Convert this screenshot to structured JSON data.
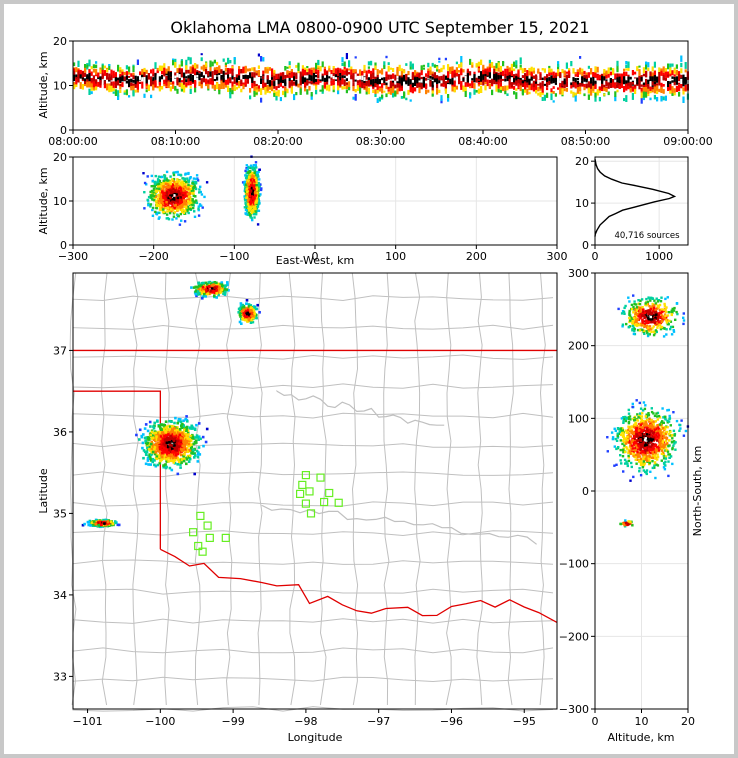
{
  "title": "Oklahoma LMA 0800-0900 UTC September 15, 2021",
  "source_count_label": "40,716 sources",
  "colors": {
    "background": "#c8c8c8",
    "frame": "#ffffff",
    "state_border": "#e00000",
    "county_lines": "#c0c0c0",
    "station": "#66ee22",
    "density": [
      "#0000cc",
      "#2040ff",
      "#00c0ff",
      "#00d0a0",
      "#20c020",
      "#ffe000",
      "#ff8000",
      "#ff0000",
      "#c00000",
      "#000000",
      "#ffffff"
    ]
  },
  "chart_data": [
    {
      "id": "time_height",
      "type": "heatmap",
      "title": "Oklahoma LMA 0800-0900 UTC September 15, 2021",
      "xlabel": "",
      "ylabel": "Altitude, km",
      "xlim": [
        "08:00:00",
        "09:00:00"
      ],
      "ylim": [
        0,
        20
      ],
      "xticks": [
        "08:00:00",
        "08:10:00",
        "08:20:00",
        "08:30:00",
        "08:40:00",
        "08:50:00",
        "09:00:00"
      ],
      "yticks": [
        "0",
        "10",
        "20"
      ],
      "x_minutes": [
        0,
        5,
        10,
        15,
        20,
        25,
        30,
        35,
        40,
        45,
        50,
        55,
        60
      ],
      "peak_altitude_km": [
        12,
        11,
        12,
        12,
        11,
        12,
        11,
        11,
        12,
        11,
        11,
        11,
        11
      ],
      "altitude_spread_km": [
        6,
        7,
        7,
        8,
        8,
        7,
        8,
        8,
        8,
        8,
        8,
        8,
        8
      ]
    },
    {
      "id": "ew_height",
      "type": "heatmap",
      "xlabel": "East-West, km",
      "ylabel": "Altitude, km",
      "xlim": [
        -300,
        300
      ],
      "ylim": [
        0,
        20
      ],
      "xticks": [
        "−300",
        "−200",
        "−100",
        "0",
        "100",
        "200",
        "300"
      ],
      "yticks": [
        "0",
        "10",
        "20"
      ],
      "clusters": [
        {
          "x_km": -175,
          "alt_km": 11,
          "x_spread_km": 25,
          "alt_spread_km": 7
        },
        {
          "x_km": -78,
          "alt_km": 12,
          "x_spread_km": 7,
          "alt_spread_km": 8
        }
      ]
    },
    {
      "id": "altitude_histogram",
      "type": "line",
      "xlabel": "",
      "ylabel": "",
      "xlim": [
        0,
        1450
      ],
      "ylim": [
        0,
        21
      ],
      "xticks": [
        "0",
        "1000"
      ],
      "yticks": [
        "0",
        "10",
        "20"
      ],
      "x": [
        0,
        5,
        30,
        80,
        150,
        220,
        320,
        430,
        560,
        730,
        930,
        1160,
        1240,
        1150,
        900,
        650,
        420,
        260,
        150,
        80,
        40,
        15,
        0
      ],
      "y": [
        2,
        2.6,
        3.5,
        4.8,
        5.8,
        6.8,
        7.5,
        8.3,
        8.8,
        9.5,
        10.3,
        11.1,
        11.6,
        12.3,
        13.3,
        14.1,
        14.8,
        15.7,
        16.5,
        17.4,
        18.2,
        19.2,
        20.5
      ]
    },
    {
      "id": "plan_view",
      "type": "heatmap",
      "xlabel": "Longitude",
      "ylabel": "Latitude",
      "xlim": [
        -101.2,
        -94.55
      ],
      "ylim": [
        32.6,
        37.95
      ],
      "xticks": [
        "−101",
        "−100",
        "−99",
        "−98",
        "−97",
        "−96",
        "−95"
      ],
      "yticks": [
        "33",
        "34",
        "35",
        "36",
        "37"
      ],
      "clusters": [
        {
          "lon": -99.85,
          "lat": 35.85,
          "d_lon": 0.3,
          "d_lat": 0.22
        },
        {
          "lon": -98.8,
          "lat": 37.45,
          "d_lon": 0.1,
          "d_lat": 0.09
        },
        {
          "lon": -99.3,
          "lat": 37.75,
          "d_lon": 0.18,
          "d_lat": 0.07
        },
        {
          "lon": -100.8,
          "lat": 34.88,
          "d_lon": 0.15,
          "d_lat": 0.03
        }
      ],
      "stations": [
        {
          "lon": -98.0,
          "lat": 35.47
        },
        {
          "lon": -97.8,
          "lat": 35.44
        },
        {
          "lon": -98.05,
          "lat": 35.35
        },
        {
          "lon": -97.95,
          "lat": 35.27
        },
        {
          "lon": -98.08,
          "lat": 35.24
        },
        {
          "lon": -97.68,
          "lat": 35.25
        },
        {
          "lon": -98.0,
          "lat": 35.12
        },
        {
          "lon": -97.75,
          "lat": 35.14
        },
        {
          "lon": -97.55,
          "lat": 35.13
        },
        {
          "lon": -97.93,
          "lat": 35.0
        },
        {
          "lon": -99.45,
          "lat": 34.97
        },
        {
          "lon": -99.35,
          "lat": 34.85
        },
        {
          "lon": -99.55,
          "lat": 34.77
        },
        {
          "lon": -99.32,
          "lat": 34.7
        },
        {
          "lon": -99.48,
          "lat": 34.6
        },
        {
          "lon": -99.42,
          "lat": 34.53
        },
        {
          "lon": -99.1,
          "lat": 34.7
        }
      ]
    },
    {
      "id": "ns_height",
      "type": "heatmap",
      "xlabel": "Altitude, km",
      "ylabel": "North-South, km",
      "xlim": [
        0,
        20
      ],
      "ylim": [
        -300,
        300
      ],
      "xticks": [
        "0",
        "10",
        "20"
      ],
      "yticks": [
        "−300",
        "−200",
        "−100",
        "0",
        "100",
        "200",
        "300"
      ],
      "clusters": [
        {
          "alt_km": 11,
          "ns_km": 70,
          "alt_spread_km": 8,
          "ns_spread_km": 30
        },
        {
          "alt_km": 12,
          "ns_km": 240,
          "alt_spread_km": 7,
          "ns_spread_km": 18
        },
        {
          "alt_km": 7,
          "ns_km": -45,
          "alt_spread_km": 2,
          "ns_spread_km": 3
        }
      ]
    }
  ]
}
